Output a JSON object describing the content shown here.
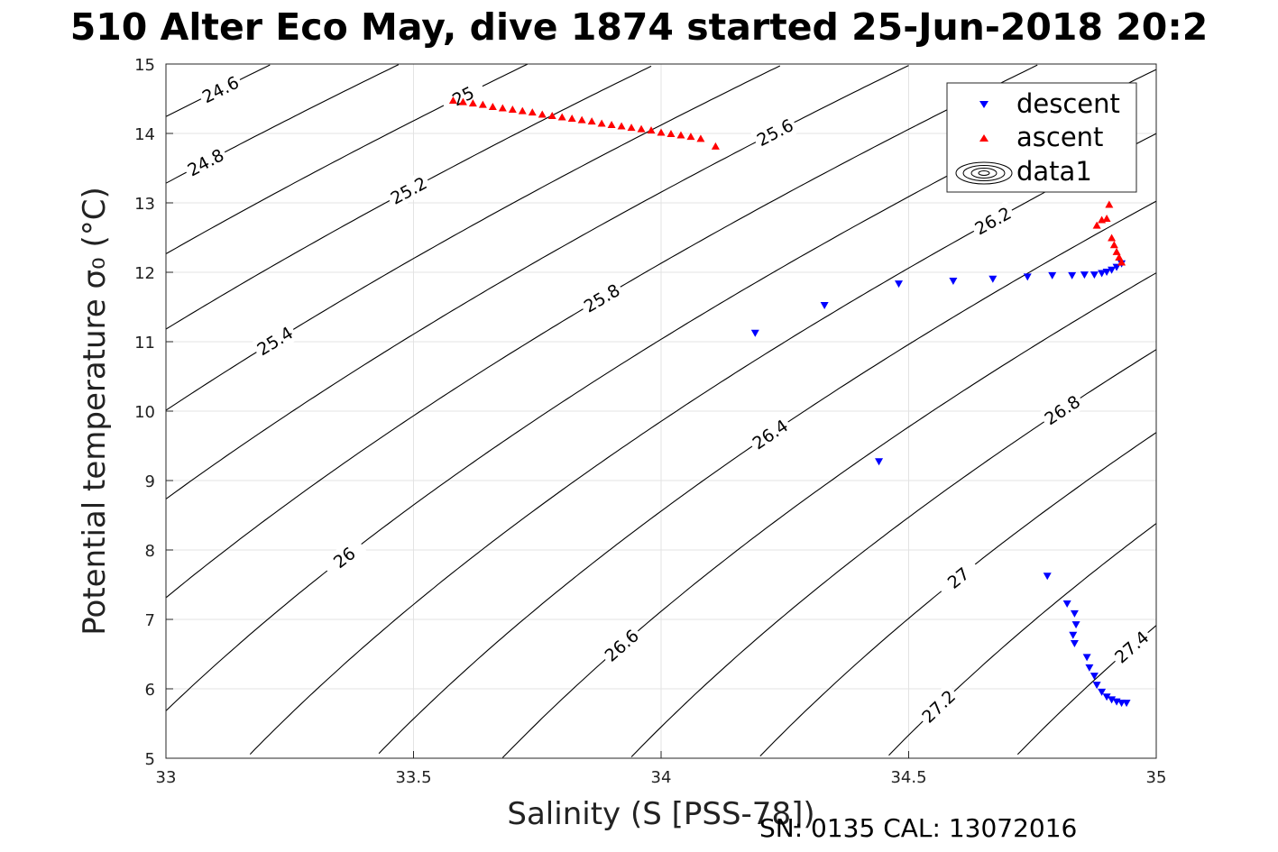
{
  "title": "510 Alter Eco May, dive 1874 started 25-Jun-2018 20:2",
  "footer": "SN: 0135  CAL: 13072016",
  "colors": {
    "descent": "#0000ff",
    "ascent": "#ff0000",
    "contour": "#000000",
    "grid": "#e3e3e3"
  },
  "chart_data": {
    "type": "scatter",
    "xlabel": "Salinity (S [PSS-78])",
    "ylabel": "Potential temperature σ₀ (°C)",
    "xlim": [
      33,
      35
    ],
    "ylim": [
      5,
      15
    ],
    "xticks": [
      "33",
      "33.5",
      "34",
      "34.5",
      "35"
    ],
    "yticks": [
      "5",
      "6",
      "7",
      "8",
      "9",
      "10",
      "11",
      "12",
      "13",
      "14",
      "15"
    ],
    "grid": true,
    "legend_position": "top-right",
    "legend": [
      "descent",
      "ascent",
      "data1"
    ],
    "contour_levels": [
      "24.6",
      "24.8",
      "25",
      "25.2",
      "25.4",
      "25.6",
      "25.8",
      "26",
      "26.2",
      "26.4",
      "26.6",
      "26.8",
      "27",
      "27.2",
      "27.4"
    ],
    "series": [
      {
        "name": "descent",
        "marker": "down-triangle",
        "x": [
          34.19,
          34.33,
          34.48,
          34.59,
          34.67,
          34.74,
          34.79,
          34.83,
          34.855,
          34.875,
          34.89,
          34.9,
          34.91,
          34.92,
          34.93,
          34.44,
          34.78,
          34.82,
          34.835,
          34.838,
          34.832,
          34.835,
          34.86,
          34.865,
          34.875,
          34.88,
          34.89,
          34.9,
          34.91,
          34.92,
          34.93,
          34.94
        ],
        "y": [
          11.12,
          11.52,
          11.83,
          11.87,
          11.9,
          11.93,
          11.95,
          11.95,
          11.96,
          11.96,
          11.98,
          12.0,
          12.03,
          12.07,
          12.12,
          9.27,
          7.62,
          7.22,
          7.08,
          6.92,
          6.77,
          6.65,
          6.45,
          6.3,
          6.18,
          6.05,
          5.95,
          5.88,
          5.84,
          5.81,
          5.79,
          5.79
        ]
      },
      {
        "name": "ascent",
        "marker": "up-triangle",
        "x": [
          33.58,
          33.6,
          33.62,
          33.64,
          33.66,
          33.68,
          33.7,
          33.72,
          33.74,
          33.76,
          33.78,
          33.8,
          33.82,
          33.84,
          33.86,
          33.88,
          33.9,
          33.92,
          33.94,
          33.96,
          33.98,
          34.0,
          34.02,
          34.04,
          34.06,
          34.08,
          34.11,
          34.88,
          34.89,
          34.9,
          34.905,
          34.91,
          34.915,
          34.92,
          34.925,
          34.93
        ],
        "y": [
          14.48,
          14.46,
          14.44,
          14.42,
          14.39,
          14.37,
          14.35,
          14.33,
          14.31,
          14.28,
          14.26,
          14.24,
          14.22,
          14.2,
          14.18,
          14.15,
          14.13,
          14.11,
          14.09,
          14.07,
          14.05,
          14.02,
          14.0,
          13.98,
          13.96,
          13.93,
          13.82,
          12.68,
          12.76,
          12.78,
          12.98,
          12.5,
          12.4,
          12.3,
          12.22,
          12.15
        ]
      }
    ]
  }
}
